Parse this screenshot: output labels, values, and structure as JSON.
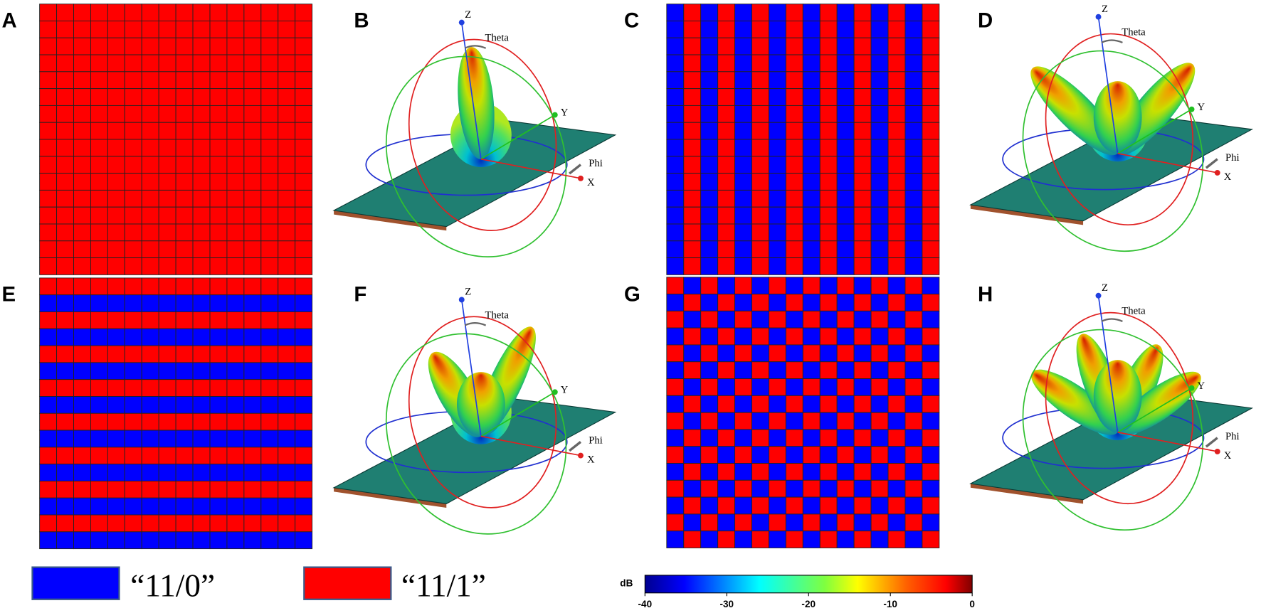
{
  "panels": {
    "labels": [
      "A",
      "B",
      "C",
      "D",
      "E",
      "F",
      "G",
      "H"
    ]
  },
  "plots": [
    {
      "z": "Z",
      "theta": "Theta",
      "y": "Y",
      "phi": "Phi",
      "x": "X"
    },
    {
      "z": "Z",
      "theta": "Theta",
      "y": "Y",
      "phi": "Phi",
      "x": "X"
    },
    {
      "z": "Z",
      "theta": "Theta",
      "y": "Y",
      "phi": "Phi",
      "x": "X"
    },
    {
      "z": "Z",
      "theta": "Theta",
      "y": "Y",
      "phi": "Phi",
      "x": "X"
    }
  ],
  "legend": [
    {
      "label": "“11/0”",
      "color": "#0000ff"
    },
    {
      "label": "“11/1”",
      "color": "#ff0000"
    }
  ],
  "colorbar": {
    "title": "dB",
    "range": [
      -40,
      0
    ],
    "ticks": [
      -40,
      -30,
      -20,
      -10,
      0
    ]
  }
}
